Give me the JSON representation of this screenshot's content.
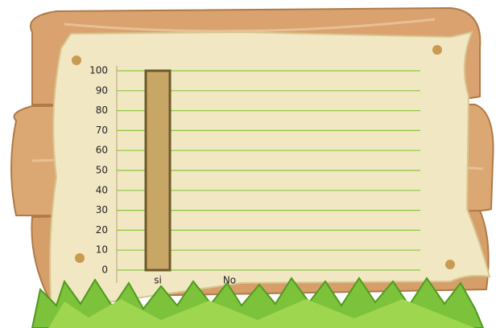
{
  "chart_data": {
    "type": "bar",
    "categories": [
      "si",
      "No"
    ],
    "values": [
      100,
      0
    ],
    "color": "#c8a665",
    "ylim": [
      0,
      100
    ],
    "yticks": [
      0,
      10,
      20,
      30,
      40,
      50,
      60,
      70,
      80,
      90,
      100
    ],
    "grid": true
  }
}
